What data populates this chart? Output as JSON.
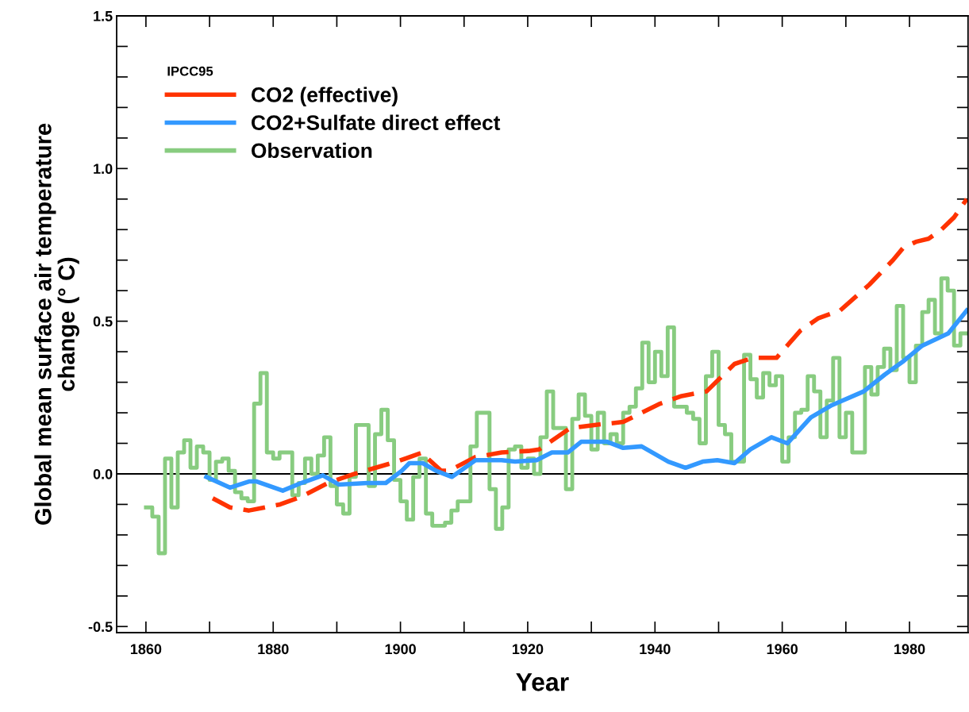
{
  "chart_data": {
    "type": "line",
    "xlabel": "Year",
    "ylabel": "Global mean surface air temperature\nchange (° C)",
    "legend_title": "IPCC95",
    "legend": "top left",
    "grid": false,
    "xlim": [
      1855.4,
      1989.2
    ],
    "ylim": [
      -0.52,
      1.5
    ],
    "xticks": [
      1860,
      {
        "value": 1870,
        "label": null
      },
      1880,
      {
        "value": 1890,
        "label": null
      },
      1900,
      {
        "value": 1910,
        "label": null
      },
      1920,
      {
        "value": 1930,
        "label": null
      },
      1940,
      {
        "value": 1950,
        "label": null
      },
      1960,
      {
        "value": 1970,
        "label": null
      },
      1980
    ],
    "yticks": [
      -0.5,
      {
        "value": -0.4,
        "label": null
      },
      {
        "value": -0.3,
        "label": null
      },
      {
        "value": -0.2,
        "label": null
      },
      {
        "value": -0.1,
        "label": null
      },
      {
        "value": 0,
        "label": "0.0"
      },
      {
        "value": 0.1,
        "label": null
      },
      {
        "value": 0.2,
        "label": null
      },
      {
        "value": 0.3,
        "label": null
      },
      {
        "value": 0.4,
        "label": null
      },
      0.5,
      {
        "value": 0.6,
        "label": null
      },
      {
        "value": 0.7,
        "label": null
      },
      {
        "value": 0.8,
        "label": null
      },
      {
        "value": 0.9,
        "label": null
      },
      {
        "value": 1,
        "label": "1.0"
      },
      {
        "value": 1.1,
        "label": null
      },
      {
        "value": 1.2,
        "label": null
      },
      {
        "value": 1.3,
        "label": null
      },
      {
        "value": 1.4,
        "label": null
      },
      1.5
    ],
    "ref_lines": [
      {
        "axis": "y",
        "value": 0,
        "color": "#000000",
        "line_style": "solid"
      }
    ],
    "series": [
      {
        "name": "CO2 (effective)",
        "color": "#ff3300",
        "line_style": "dashed",
        "x": [
          1870.5,
          1873.2,
          1876.2,
          1881.1,
          1884.4,
          1888.6,
          1892.8,
          1899.4,
          1903.5,
          1904.3,
          1906.4,
          1907.6,
          1911.8,
          1915.9,
          1920.1,
          1921.8,
          1926.7,
          1930.5,
          1935,
          1940.8,
          1944.2,
          1948.1,
          1952.5,
          1955.4,
          1959.1,
          1962.9,
          1965.7,
          1969.1,
          1973.7,
          1977.4,
          1979,
          1981,
          1983,
          1985,
          1987,
          1989
        ],
        "values": [
          -0.08,
          -0.11,
          -0.12,
          -0.1,
          -0.075,
          -0.03,
          0.0,
          0.04,
          0.07,
          0.05,
          0.01,
          0.01,
          0.055,
          0.07,
          0.075,
          0.08,
          0.15,
          0.16,
          0.17,
          0.23,
          0.255,
          0.27,
          0.36,
          0.38,
          0.38,
          0.47,
          0.51,
          0.535,
          0.62,
          0.7,
          0.74,
          0.76,
          0.77,
          0.8,
          0.84,
          0.9
        ]
      },
      {
        "name": "CO2+Sulfate direct effect",
        "color": "#3399ff",
        "line_style": "solid",
        "x": [
          1869.5,
          1873.2,
          1876.2,
          1877.4,
          1881.5,
          1884.4,
          1887.8,
          1890.3,
          1894.8,
          1897.7,
          1900.2,
          1901.4,
          1903.5,
          1905.6,
          1908.1,
          1911.8,
          1915.9,
          1918,
          1921.4,
          1923.8,
          1926.3,
          1928.4,
          1932.5,
          1935,
          1937.9,
          1942.1,
          1944.8,
          1947.5,
          1949.8,
          1952.5,
          1955,
          1958.3,
          1960.8,
          1964.5,
          1967.8,
          1972.8,
          1976.1,
          1979.1,
          1982,
          1986.1,
          1989
        ],
        "values": [
          -0.01,
          -0.045,
          -0.025,
          -0.025,
          -0.055,
          -0.03,
          -0.005,
          -0.035,
          -0.03,
          -0.03,
          0.01,
          0.035,
          0.035,
          0.01,
          -0.01,
          0.045,
          0.045,
          0.04,
          0.045,
          0.07,
          0.07,
          0.105,
          0.105,
          0.085,
          0.09,
          0.04,
          0.02,
          0.04,
          0.045,
          0.035,
          0.08,
          0.12,
          0.1,
          0.185,
          0.225,
          0.27,
          0.325,
          0.37,
          0.42,
          0.46,
          0.535
        ]
      },
      {
        "name": "Observation",
        "color": "#88cc80",
        "type": "step",
        "line_style": "solid",
        "x": [
          1860,
          1861,
          1862,
          1863,
          1864,
          1865,
          1866,
          1867,
          1868,
          1869,
          1870,
          1871,
          1872,
          1873,
          1874,
          1875,
          1876,
          1877,
          1878,
          1879,
          1880,
          1881,
          1882,
          1883,
          1884,
          1885,
          1886,
          1887,
          1888,
          1889,
          1890,
          1891,
          1892,
          1893,
          1894,
          1895,
          1896,
          1897,
          1898,
          1899,
          1900,
          1901,
          1902,
          1903,
          1904,
          1905,
          1906,
          1907,
          1908,
          1909,
          1910,
          1911,
          1912,
          1913,
          1914,
          1915,
          1916,
          1917,
          1918,
          1919,
          1920,
          1921,
          1922,
          1923,
          1924,
          1925,
          1926,
          1927,
          1928,
          1929,
          1930,
          1931,
          1932,
          1933,
          1934,
          1935,
          1936,
          1937,
          1938,
          1939,
          1940,
          1941,
          1942,
          1943,
          1944,
          1945,
          1946,
          1947,
          1948,
          1949,
          1950,
          1951,
          1952,
          1953,
          1954,
          1955,
          1956,
          1957,
          1958,
          1959,
          1960,
          1961,
          1962,
          1963,
          1964,
          1965,
          1966,
          1967,
          1968,
          1969,
          1970,
          1971,
          1972,
          1973,
          1974,
          1975,
          1976,
          1977,
          1978,
          1979,
          1980,
          1981,
          1982,
          1983,
          1984,
          1985,
          1986,
          1987,
          1988,
          1989
        ],
        "values": [
          -0.11,
          -0.14,
          -0.26,
          0.05,
          -0.11,
          0.07,
          0.11,
          0.02,
          0.09,
          0.07,
          -0.02,
          0.04,
          0.05,
          0.01,
          -0.06,
          -0.08,
          -0.09,
          0.23,
          0.33,
          0.07,
          0.05,
          0.07,
          0.07,
          -0.07,
          -0.03,
          0.05,
          0.0,
          0.06,
          0.12,
          -0.04,
          -0.1,
          -0.13,
          -0.01,
          0.16,
          0.16,
          -0.04,
          0.13,
          0.21,
          0.11,
          -0.02,
          -0.09,
          -0.15,
          -0.01,
          0.05,
          -0.13,
          -0.17,
          -0.17,
          -0.16,
          -0.12,
          -0.09,
          -0.09,
          0.09,
          0.2,
          0.2,
          -0.05,
          -0.18,
          -0.11,
          0.08,
          0.09,
          0.02,
          0.05,
          0.0,
          0.12,
          0.27,
          0.15,
          0.15,
          -0.05,
          0.18,
          0.26,
          0.19,
          0.08,
          0.2,
          0.1,
          0.13,
          0.1,
          0.2,
          0.22,
          0.28,
          0.43,
          0.3,
          0.4,
          0.32,
          0.48,
          0.22,
          0.22,
          0.2,
          0.18,
          0.1,
          0.32,
          0.4,
          0.16,
          0.13,
          0.04,
          0.04,
          0.39,
          0.31,
          0.25,
          0.33,
          0.29,
          0.32,
          0.04,
          0.12,
          0.2,
          0.21,
          0.32,
          0.27,
          0.12,
          0.24,
          0.38,
          0.12,
          0.2,
          0.07,
          0.07,
          0.35,
          0.26,
          0.35,
          0.41,
          0.34,
          0.55,
          0.38,
          0.3,
          0.42,
          0.53,
          0.57,
          0.46,
          0.64,
          0.6,
          0.42,
          0.46,
          0.46
        ]
      }
    ]
  }
}
